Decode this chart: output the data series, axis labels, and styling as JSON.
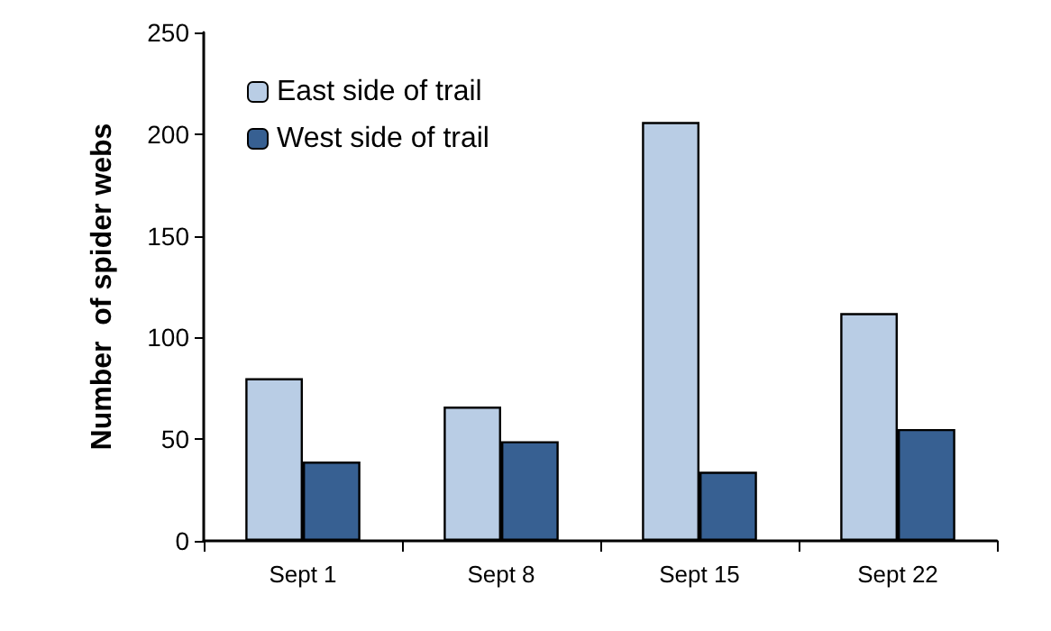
{
  "chart_data": {
    "type": "bar",
    "ylabel": "Number  of spider webs",
    "categories": [
      "Sept 1",
      "Sept 8",
      "Sept 15",
      "Sept 22"
    ],
    "series": [
      {
        "name": "East side of trail",
        "color": "#b9cde5",
        "values": [
          80,
          66,
          206,
          112
        ]
      },
      {
        "name": "West side of trail",
        "color": "#376092",
        "values": [
          39,
          49,
          34,
          55
        ]
      }
    ],
    "ylim": [
      0,
      250
    ],
    "yticks": [
      0,
      50,
      100,
      150,
      200,
      250
    ],
    "grid": false,
    "legend": "top left"
  }
}
